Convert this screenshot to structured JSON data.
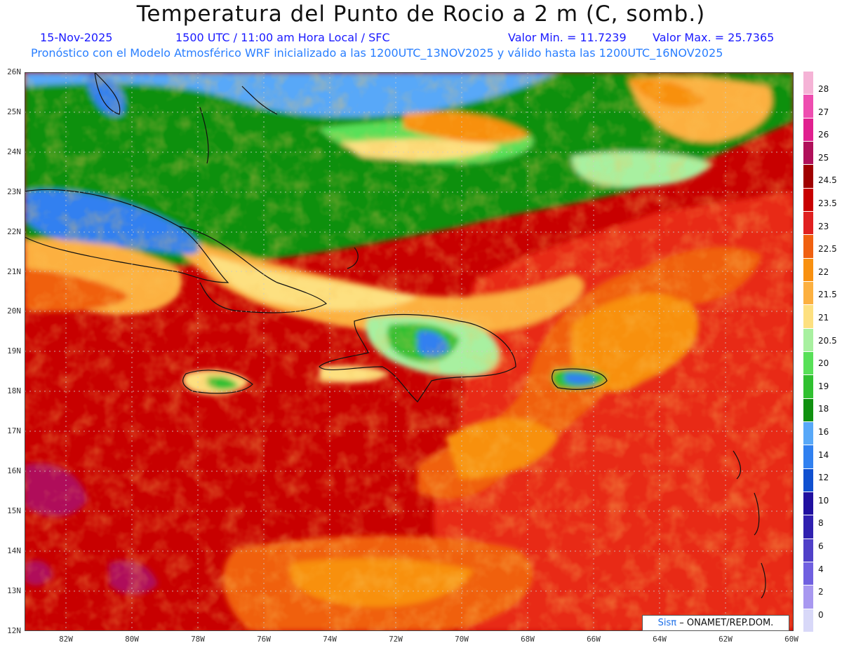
{
  "title": "Temperatura del Punto de Rocio a 2 m (C, somb.)",
  "subtitle": {
    "date": "15-Nov-2025",
    "time": "1500 UTC / 11:00 am Hora Local / SFC",
    "min": "Valor Min. = 11.7239",
    "max": "Valor Max. = 25.7365",
    "model": "Pronóstico con el Modelo Atmosférico WRF inicializado a las 1200UTC_13NOV2025 y válido hasta las 1200UTC_16NOV2025"
  },
  "map": {
    "lat_labels": [
      "26N",
      "25N",
      "24N",
      "23N",
      "22N",
      "21N",
      "20N",
      "19N",
      "18N",
      "17N",
      "16N",
      "15N",
      "14N",
      "13N",
      "12N"
    ],
    "lon_labels": [
      "82W",
      "80W",
      "78W",
      "76W",
      "74W",
      "72W",
      "70W",
      "68W",
      "66W",
      "64W",
      "62W",
      "60W"
    ],
    "lat_range": [
      12,
      26
    ],
    "lon_range": [
      -83.2,
      -60
    ]
  },
  "colorbar": {
    "labels": [
      "28",
      "27",
      "26",
      "25",
      "24.5",
      "23.5",
      "23",
      "22.5",
      "22",
      "21.5",
      "21",
      "20.5",
      "20",
      "19",
      "18",
      "16",
      "14",
      "12",
      "10",
      "8",
      "6",
      "4",
      "2",
      "0"
    ],
    "colors": [
      "#f5b3d6",
      "#ee4db0",
      "#e0208f",
      "#b0105a",
      "#a00000",
      "#c80000",
      "#e02020",
      "#f06010",
      "#f89010",
      "#fcb040",
      "#fde080",
      "#a8f0a0",
      "#58e058",
      "#30c030",
      "#109010",
      "#58a8f8",
      "#3080f0",
      "#1050d0",
      "#2010a0",
      "#3020b0",
      "#5040c8",
      "#7060e0",
      "#a898f0",
      "#d8d8f8"
    ]
  },
  "credit": {
    "logo": "Sisπ",
    "text": "– ONAMET/REP.DOM."
  }
}
